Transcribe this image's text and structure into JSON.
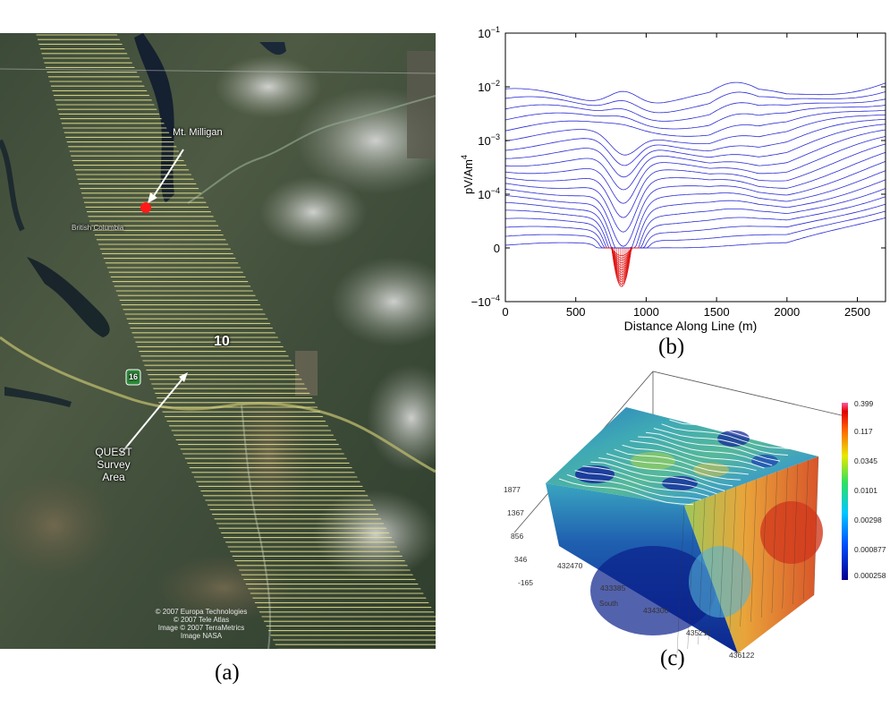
{
  "panel_a": {
    "caption": "(a)",
    "labels": {
      "mt_milligan": "Mt. Milligan",
      "province": "British Columbia",
      "highway_number": "10",
      "route_shield": "16",
      "survey_line1": "QUEST Survey",
      "survey_line2": "Area"
    },
    "copyright": [
      "© 2007 Europa Technologies",
      "© 2007 Tele Atlas",
      "Image © 2007 TerraMetrics",
      "Image NASA"
    ],
    "colors": {
      "survey_lines": "#e6e28a",
      "marker": "#ff1a1a"
    }
  },
  "panel_b": {
    "caption": "(b)",
    "xlabel": "Distance Along Line (m)",
    "ylabel_base": "pV/Am",
    "ylabel_exp": "4",
    "y_ticks": [
      {
        "base": "10",
        "exp": "−1"
      },
      {
        "base": "10",
        "exp": "−2"
      },
      {
        "base": "10",
        "exp": "−3"
      },
      {
        "base": "10",
        "exp": "−4"
      },
      {
        "base": "0",
        "exp": ""
      },
      {
        "base": "−10",
        "exp": "−4"
      }
    ],
    "x_ticks": [
      "0",
      "500",
      "1000",
      "1500",
      "2000",
      "2500"
    ],
    "colors": {
      "positive_curves": "#2b2bd6",
      "negative_curves": "#e01515"
    }
  },
  "chart_data": {
    "type": "line",
    "title": "",
    "xlabel": "Distance Along Line (m)",
    "ylabel": "pV/Am^4",
    "xlim": [
      0,
      2700
    ],
    "y_scale": "symmetric-log",
    "ylim_log10": [
      -4,
      -1
    ],
    "n_positive_channels": 20,
    "features": [
      {
        "x": 850,
        "desc": "peak in early-time channels"
      },
      {
        "x": 820,
        "desc": "negative decay values, minimum near -0.7e-4"
      },
      {
        "x": 1600,
        "desc": "secondary broad high"
      }
    ],
    "color_scale_panel_c": [
      "0.399",
      "0.117",
      "0.0345",
      "0.0101",
      "0.00298",
      "0.000877",
      "0.000258"
    ]
  },
  "panel_c": {
    "caption": "(c)",
    "z_ticks": [
      "1877",
      "1367",
      "856",
      "346",
      "-165"
    ],
    "x_ticks": [
      "432470",
      "433385",
      "434300",
      "435211",
      "436122"
    ],
    "axis_label": "South",
    "colorbar_ticks": [
      "0.399",
      "0.117",
      "0.0345",
      "0.0101",
      "0.00298",
      "0.000877",
      "0.000258"
    ]
  }
}
